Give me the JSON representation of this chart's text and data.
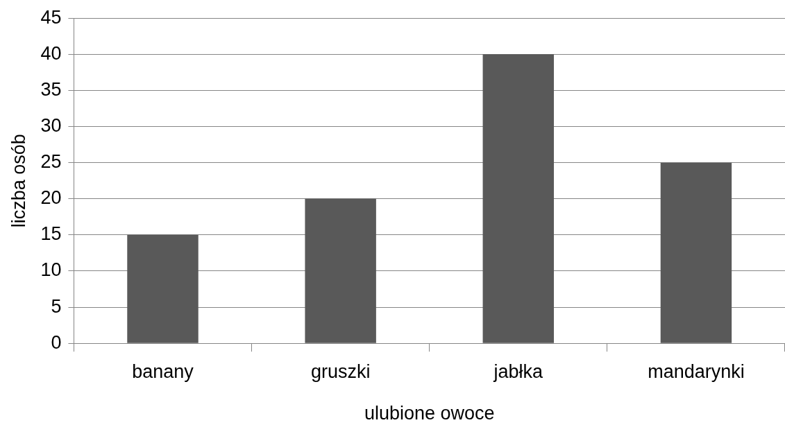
{
  "chart_data": {
    "type": "bar",
    "xlabel": "ulubione owoce",
    "ylabel": "liczba osób",
    "categories": [
      "banany",
      "gruszki",
      "jabłka",
      "mandarynki"
    ],
    "values": [
      15,
      20,
      40,
      25
    ],
    "color": "#595959",
    "ylim": [
      0,
      45
    ],
    "yticks": [
      0,
      5,
      10,
      15,
      20,
      25,
      30,
      35,
      40,
      45
    ],
    "grid": "y",
    "legend": false
  }
}
